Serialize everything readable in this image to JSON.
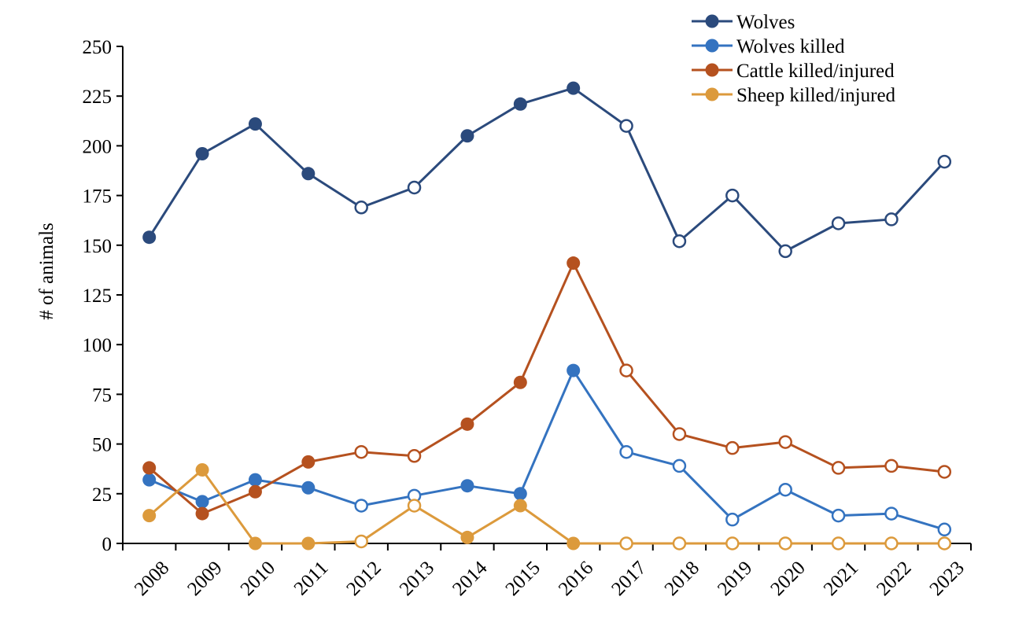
{
  "chart_data": {
    "type": "line",
    "title": "",
    "xlabel": "",
    "ylabel": "# of animals",
    "ylim": [
      0,
      250
    ],
    "yticks": [
      0,
      25,
      50,
      75,
      100,
      125,
      150,
      175,
      200,
      225,
      250
    ],
    "ytick_labels": [
      "0",
      "25",
      "50",
      "75",
      "100",
      "125",
      "150",
      "175",
      "200",
      "225",
      "250"
    ],
    "categories": [
      "2008",
      "2009",
      "2010",
      "2011",
      "2012",
      "2013",
      "2014",
      "2015",
      "2016",
      "2017",
      "2018",
      "2019",
      "2020",
      "2021",
      "2022",
      "2023"
    ],
    "grid": false,
    "legend_position": "top-right",
    "marker_filled": [
      true,
      true,
      true,
      true,
      false,
      false,
      true,
      true,
      true,
      false,
      false,
      false,
      false,
      false,
      false,
      false
    ],
    "series": [
      {
        "name": "Wolves",
        "color": "#2b4a7c",
        "values": [
          154,
          196,
          211,
          186,
          169,
          179,
          205,
          221,
          229,
          210,
          152,
          175,
          147,
          161,
          163,
          192
        ]
      },
      {
        "name": "Wolves killed",
        "color": "#3473c0",
        "values": [
          32,
          21,
          32,
          28,
          19,
          24,
          29,
          25,
          87,
          46,
          39,
          12,
          27,
          14,
          15,
          7
        ]
      },
      {
        "name": "Cattle killed/injured",
        "color": "#b5511f",
        "values": [
          38,
          15,
          26,
          41,
          46,
          44,
          60,
          81,
          141,
          87,
          55,
          48,
          51,
          38,
          39,
          36
        ]
      },
      {
        "name": "Sheep killed/injured",
        "color": "#dc9a3c",
        "values": [
          14,
          37,
          0,
          0,
          1,
          19,
          3,
          19,
          0,
          0,
          0,
          0,
          0,
          0,
          0,
          0
        ]
      }
    ]
  }
}
